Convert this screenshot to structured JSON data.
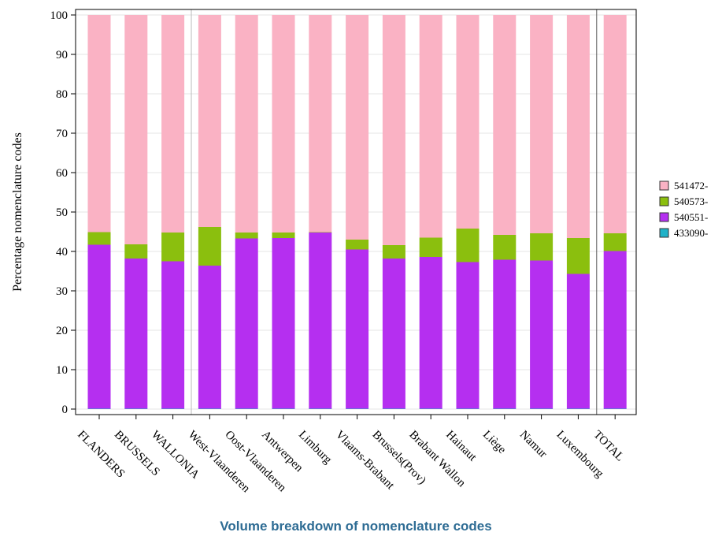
{
  "chart_data": {
    "type": "bar",
    "stacked": true,
    "title": "",
    "xlabel": "",
    "ylabel": "Percentage nomenclature codes",
    "ylim": [
      0,
      100
    ],
    "yticks": [
      0,
      10,
      20,
      30,
      40,
      50,
      60,
      70,
      80,
      90,
      100
    ],
    "grid": true,
    "legend_position": "right",
    "categories": [
      "FLANDERS",
      "BRUSSELS",
      "WALLONIA",
      "West-Vlaanderen",
      "Oost-Vlaanderen",
      "Antwerpen",
      "Limburg",
      "Vlaams-Brabant",
      "Brussels(Prov)",
      "Brabant Wallon",
      "Hainaut",
      "Liège",
      "Namur",
      "Luxembourg",
      "TOTAL"
    ],
    "group_separators_after": [
      2,
      13
    ],
    "series": [
      {
        "name": "433090-",
        "color": "#1fb2c8",
        "values": [
          0.1,
          0.1,
          0.1,
          0.1,
          0.1,
          0.1,
          0.1,
          0.1,
          0.1,
          0.1,
          0.1,
          0.1,
          0.1,
          0.1,
          0.1
        ]
      },
      {
        "name": "540551-",
        "color": "#b52ff0",
        "values": [
          41.6,
          38.1,
          37.4,
          36.3,
          43.2,
          43.3,
          44.7,
          40.4,
          38.1,
          38.5,
          37.2,
          37.8,
          37.6,
          34.2,
          40.0
        ]
      },
      {
        "name": "540573-",
        "color": "#8bbf0e",
        "values": [
          3.2,
          3.6,
          7.3,
          9.8,
          1.5,
          1.4,
          0.1,
          2.5,
          3.4,
          4.9,
          8.5,
          6.3,
          6.9,
          9.1,
          4.5
        ]
      },
      {
        "name": "541472-",
        "color": "#fab2c4",
        "values": [
          55.1,
          58.2,
          55.2,
          53.8,
          55.2,
          55.2,
          55.1,
          57.0,
          58.4,
          56.5,
          54.2,
          55.8,
          55.4,
          56.6,
          55.4
        ]
      }
    ]
  },
  "legend": {
    "items": [
      {
        "label": "541472-",
        "color": "#fab2c4"
      },
      {
        "label": "540573-",
        "color": "#8bbf0e"
      },
      {
        "label": "540551-",
        "color": "#b52ff0"
      },
      {
        "label": "433090-",
        "color": "#1fb2c8"
      }
    ]
  },
  "caption": "Volume breakdown of nomenclature codes"
}
